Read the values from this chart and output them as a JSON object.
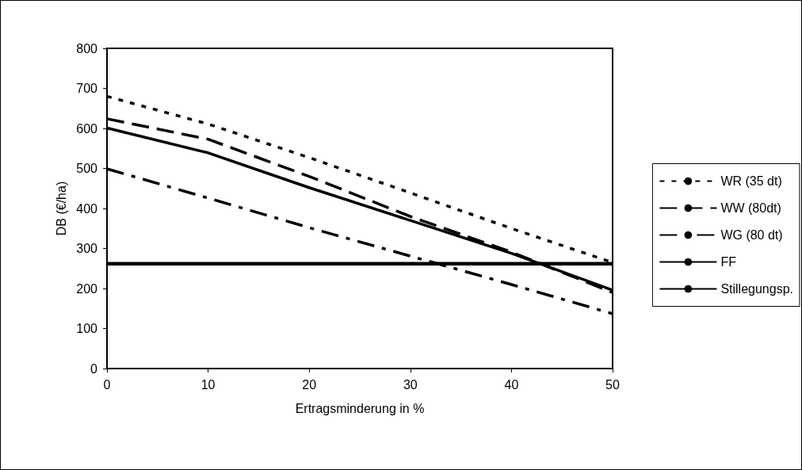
{
  "chart_data": {
    "type": "line",
    "xlabel": "Ertragsminderung in %",
    "ylabel": "DB (€/ha)",
    "x": [
      0,
      10,
      20,
      30,
      40,
      50
    ],
    "series": [
      {
        "name": "WR (35 dt)",
        "color": "#000000",
        "line_style": "dotted",
        "values": [
          680,
          611,
          527,
          439,
          350,
          265
        ]
      },
      {
        "name": "WW (80dt)",
        "color": "#000000",
        "line_style": "dashed",
        "values": [
          624,
          573,
          480,
          380,
          291,
          190
        ]
      },
      {
        "name": "WG (80 dt)",
        "color": "#000000",
        "line_style": "dashdot",
        "values": [
          499,
          426,
          352,
          281,
          210,
          137
        ]
      },
      {
        "name": "FF",
        "color": "#000000",
        "line_style": "solid",
        "values": [
          601,
          539,
          452,
          370,
          288,
          196
        ]
      },
      {
        "name": "Stillegungsp.",
        "color": "#000000",
        "line_style": "solid",
        "values": [
          262,
          262,
          262,
          262,
          262,
          262
        ]
      }
    ],
    "xlim": [
      0,
      50
    ],
    "xticks": [
      0,
      10,
      20,
      30,
      40,
      50
    ],
    "ylim": [
      0,
      800
    ],
    "yticks": [
      0,
      100,
      200,
      300,
      400,
      500,
      600,
      700,
      800
    ],
    "grid": false,
    "legend": "right",
    "marker": "none"
  }
}
